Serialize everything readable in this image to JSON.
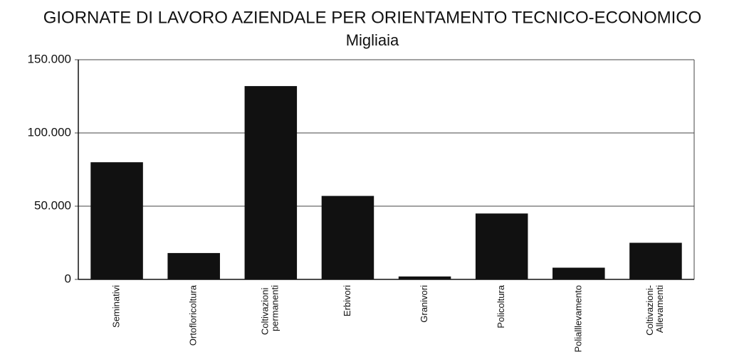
{
  "chart_data": {
    "type": "bar",
    "title": "GIORNATE DI LAVORO AZIENDALE PER ORIENTAMENTO TECNICO-ECONOMICO",
    "subtitle": "Migliaia",
    "categories": [
      "Seminativi",
      "Ortofloricoltura",
      "Coltivazioni permanenti",
      "Erbivori",
      "Granivori",
      "Policoltura",
      "Polialllevamento",
      "Coltivazioni-Allevamenti"
    ],
    "values": [
      80000,
      18000,
      132000,
      57000,
      2000,
      45000,
      8000,
      25000
    ],
    "color": "#111111",
    "ylim": [
      0,
      150000
    ],
    "yticks": [
      0,
      {
        "value": 50000,
        "label": "50.000"
      },
      {
        "value": 100000,
        "label": "100.000"
      },
      {
        "value": 150000,
        "label": "150.000"
      }
    ],
    "grid": true
  }
}
